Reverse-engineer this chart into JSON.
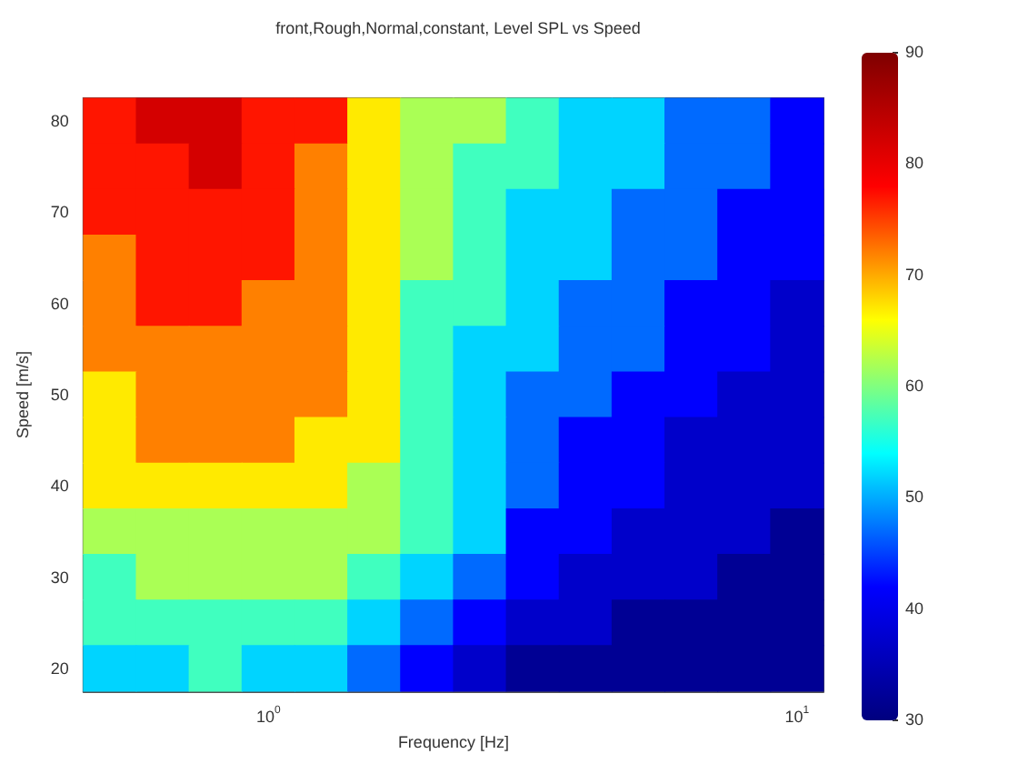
{
  "chart_data": {
    "type": "heatmap",
    "title": "front,Rough,Normal,constant, Level SPL vs Speed",
    "xlabel": "Frequency [Hz]",
    "ylabel": "Speed [m/s]",
    "categories": [
      null,
      null,
      null,
      "10$^{0}$",
      null,
      null,
      null,
      null,
      null,
      null,
      null,
      null,
      null,
      "10$^{1}$"
    ],
    "y_categories": [
      "80",
      null,
      "70",
      null,
      "60",
      null,
      "50",
      null,
      "40",
      null,
      "30",
      null,
      "20"
    ],
    "cells": [
      [
        77,
        82,
        82,
        77,
        77,
        67,
        62,
        62,
        57,
        52,
        52,
        47,
        47,
        42
      ],
      [
        77,
        77,
        82,
        77,
        72,
        67,
        62,
        57,
        57,
        52,
        52,
        47,
        47,
        42
      ],
      [
        77,
        77,
        77,
        77,
        72,
        67,
        62,
        57,
        52,
        52,
        47,
        47,
        42,
        42
      ],
      [
        72,
        77,
        77,
        77,
        72,
        67,
        62,
        57,
        52,
        52,
        47,
        47,
        42,
        42
      ],
      [
        72,
        77,
        77,
        72,
        72,
        67,
        57,
        57,
        52,
        47,
        47,
        42,
        42,
        37
      ],
      [
        72,
        72,
        72,
        72,
        72,
        67,
        57,
        52,
        52,
        47,
        47,
        42,
        42,
        37
      ],
      [
        67,
        72,
        72,
        72,
        72,
        67,
        57,
        52,
        47,
        47,
        42,
        42,
        37,
        37
      ],
      [
        67,
        72,
        72,
        72,
        67,
        67,
        57,
        52,
        47,
        42,
        42,
        37,
        37,
        37
      ],
      [
        67,
        67,
        67,
        67,
        67,
        62,
        57,
        52,
        47,
        42,
        42,
        37,
        37,
        37
      ],
      [
        62,
        62,
        62,
        62,
        62,
        62,
        57,
        52,
        42,
        42,
        37,
        37,
        37,
        32
      ],
      [
        57,
        62,
        62,
        62,
        62,
        57,
        52,
        47,
        42,
        37,
        37,
        37,
        32,
        32
      ],
      [
        57,
        57,
        57,
        57,
        57,
        52,
        47,
        42,
        37,
        37,
        32,
        32,
        32,
        32
      ],
      [
        52,
        52,
        57,
        52,
        52,
        47,
        42,
        37,
        32,
        32,
        32,
        32,
        32,
        32
      ]
    ],
    "clim": [
      30,
      90
    ],
    "cticks": [
      30,
      40,
      50,
      60,
      70,
      80,
      90
    ]
  }
}
